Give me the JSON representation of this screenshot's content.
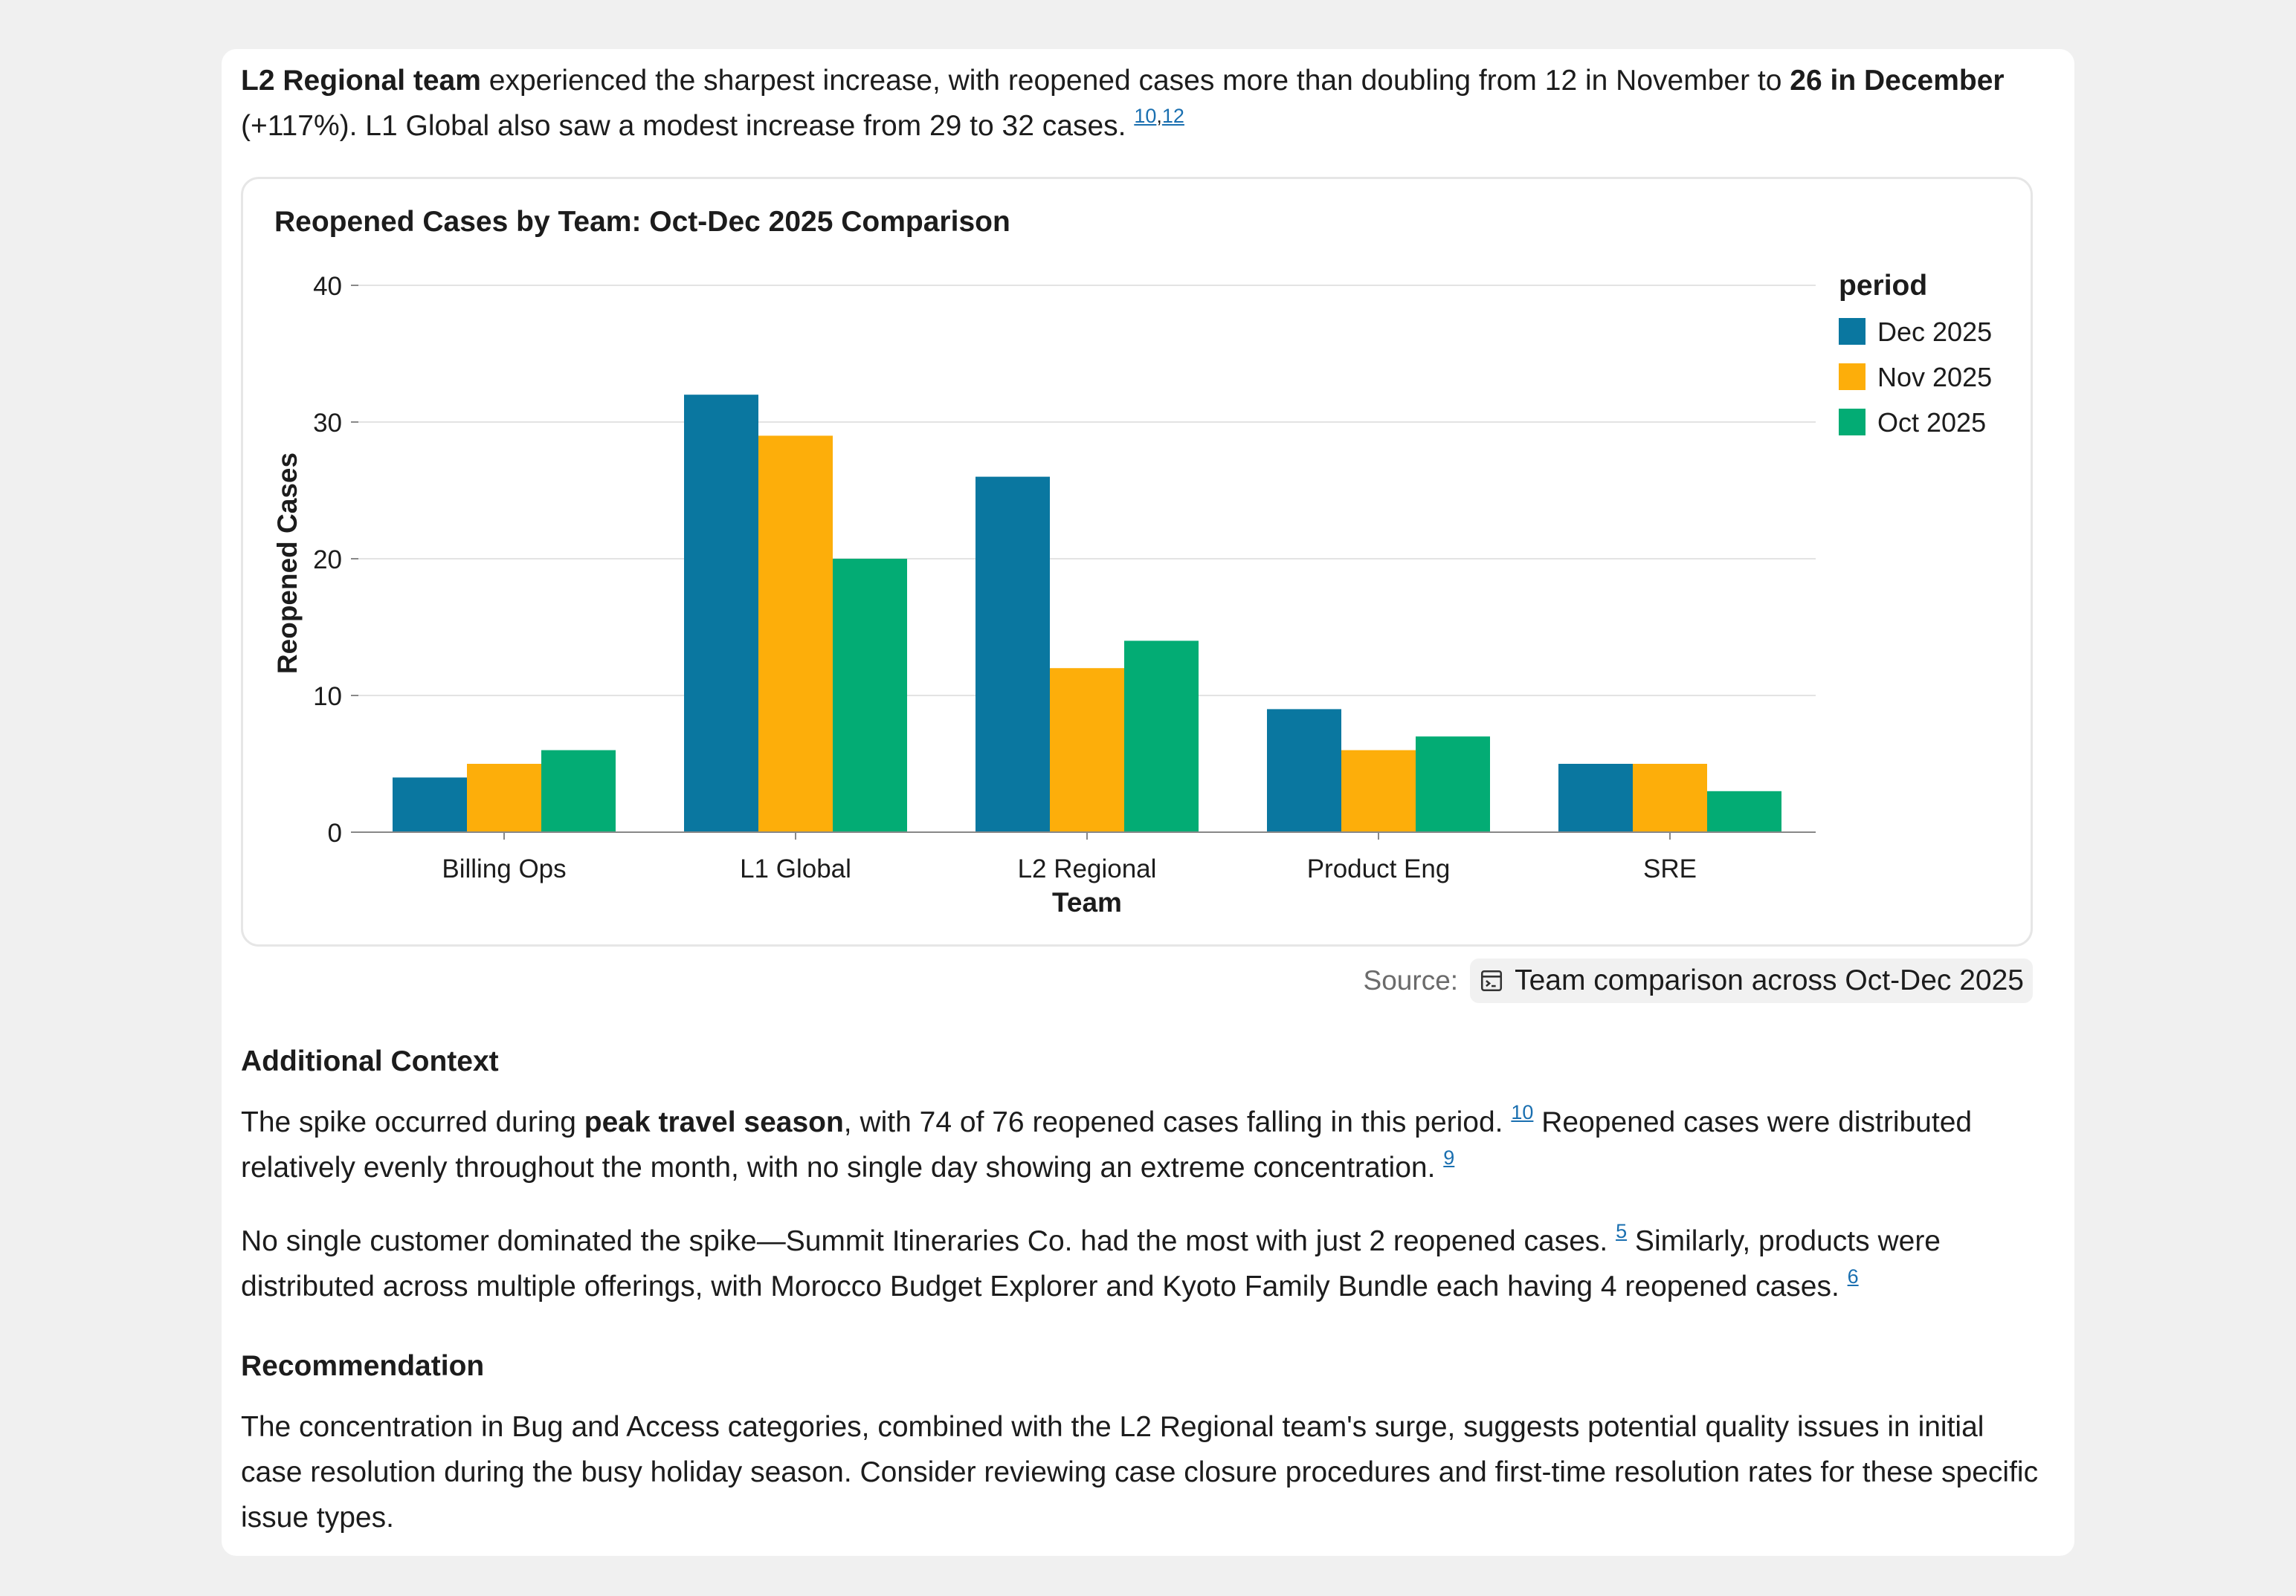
{
  "intro": {
    "bold1": "L2 Regional team",
    "text1": " experienced the sharpest increase, with reopened cases more than doubling from 12 in November to ",
    "bold2": "26 in December",
    "text2": " (+117%). L1 Global also saw a modest increase from 29 to 32 cases. ",
    "cite1": "10",
    "cite_sep": ",",
    "cite2": "12"
  },
  "chart_data": {
    "type": "bar",
    "title": "Reopened Cases by Team: Oct-Dec 2025 Comparison",
    "xlabel": "Team",
    "ylabel": "Reopened Cases",
    "ylim": [
      0,
      40
    ],
    "yticks": [
      0,
      10,
      20,
      30,
      40
    ],
    "grid": true,
    "legend_title": "period",
    "legend_position": "right",
    "categories": [
      "Billing Ops",
      "L1 Global",
      "L2 Regional",
      "Product Eng",
      "SRE"
    ],
    "series": [
      {
        "name": "Dec 2025",
        "color": "#0a77a0",
        "values": [
          4,
          32,
          26,
          9,
          5
        ]
      },
      {
        "name": "Nov 2025",
        "color": "#fdae0a",
        "values": [
          5,
          29,
          12,
          6,
          5
        ]
      },
      {
        "name": "Oct 2025",
        "color": "#03ac74",
        "values": [
          6,
          20,
          14,
          7,
          3
        ]
      }
    ]
  },
  "source": {
    "label": "Source:",
    "link_text": "Team comparison across Oct-Dec 2025",
    "icon": "terminal-window-icon"
  },
  "additional_context": {
    "heading": "Additional Context",
    "p1_text1": "The spike occurred during ",
    "p1_bold": "peak travel season",
    "p1_text2": ", with 74 of 76 reopened cases falling in this period. ",
    "p1_cite1": "10",
    "p1_text3": " Reopened cases were distributed relatively evenly throughout the month, with no single day showing an extreme concentration. ",
    "p1_cite2": "9",
    "p2_text1": "No single customer dominated the spike—Summit Itineraries Co. had the most with just 2 reopened cases. ",
    "p2_cite1": "5",
    "p2_text2": " Similarly, products were distributed across multiple offerings, with Morocco Budget Explorer and Kyoto Family Bundle each having 4 reopened cases. ",
    "p2_cite2": "6"
  },
  "recommendation": {
    "heading": "Recommendation",
    "text": "The concentration in Bug and Access categories, combined with the L2 Regional team's surge, suggests potential quality issues in initial case resolution during the busy holiday season. Consider reviewing case closure procedures and first-time resolution rates for these specific issue types."
  }
}
